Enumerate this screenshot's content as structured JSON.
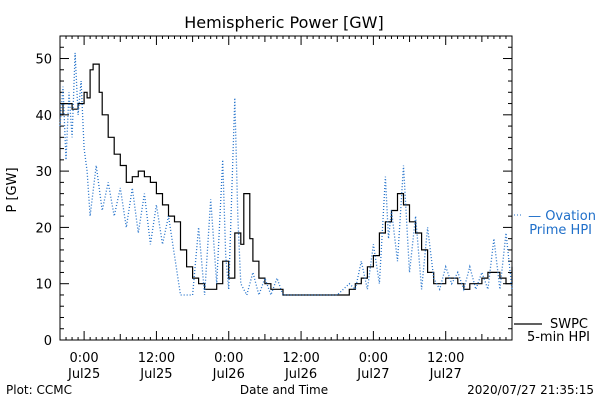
{
  "chart_data": {
    "type": "line",
    "title": "Hemispheric Power [GW]",
    "ylabel": "P [GW]",
    "xlabel": "Date and Time",
    "ylim": [
      0,
      54
    ],
    "xlim": [
      "2020-07-24T20:00",
      "2020-07-27T23:00"
    ],
    "y_ticks": [
      0,
      10,
      20,
      30,
      40,
      50
    ],
    "x_ticks": [
      {
        "t": "2020-07-25T00:00",
        "line1": "0:00",
        "line2": "Jul25"
      },
      {
        "t": "2020-07-25T12:00",
        "line1": "12:00",
        "line2": "Jul25"
      },
      {
        "t": "2020-07-26T00:00",
        "line1": "0:00",
        "line2": "Jul26"
      },
      {
        "t": "2020-07-26T12:00",
        "line1": "12:00",
        "line2": "Jul26"
      },
      {
        "t": "2020-07-27T00:00",
        "line1": "0:00",
        "line2": "Jul27"
      },
      {
        "t": "2020-07-27T12:00",
        "line1": "12:00",
        "line2": "Jul27"
      }
    ],
    "grid": false,
    "legend_position": "right",
    "series": [
      {
        "name": "SWPC 5-min HPI",
        "legend_line1": "SWPC",
        "legend_line2": "5-min HPI",
        "color": "#000000",
        "style": "solid",
        "points": [
          [
            "2020-07-24T20:00",
            40
          ],
          [
            "2020-07-24T20:30",
            42
          ],
          [
            "2020-07-24T22:00",
            41
          ],
          [
            "2020-07-24T23:00",
            42
          ],
          [
            "2020-07-25T00:00",
            44
          ],
          [
            "2020-07-25T00:30",
            43
          ],
          [
            "2020-07-25T01:00",
            48
          ],
          [
            "2020-07-25T01:30",
            49
          ],
          [
            "2020-07-25T02:30",
            44
          ],
          [
            "2020-07-25T03:00",
            40
          ],
          [
            "2020-07-25T04:00",
            36
          ],
          [
            "2020-07-25T05:00",
            33
          ],
          [
            "2020-07-25T06:00",
            31
          ],
          [
            "2020-07-25T07:00",
            28
          ],
          [
            "2020-07-25T08:00",
            29
          ],
          [
            "2020-07-25T09:00",
            30
          ],
          [
            "2020-07-25T10:00",
            29
          ],
          [
            "2020-07-25T11:00",
            28
          ],
          [
            "2020-07-25T12:00",
            26
          ],
          [
            "2020-07-25T13:00",
            24
          ],
          [
            "2020-07-25T14:00",
            22
          ],
          [
            "2020-07-25T15:00",
            21
          ],
          [
            "2020-07-25T16:00",
            16
          ],
          [
            "2020-07-25T17:00",
            13
          ],
          [
            "2020-07-25T18:00",
            11
          ],
          [
            "2020-07-25T19:00",
            10
          ],
          [
            "2020-07-25T20:00",
            9
          ],
          [
            "2020-07-25T21:00",
            9
          ],
          [
            "2020-07-25T22:00",
            10
          ],
          [
            "2020-07-25T23:00",
            14
          ],
          [
            "2020-07-26T00:00",
            11
          ],
          [
            "2020-07-26T01:00",
            19
          ],
          [
            "2020-07-26T02:00",
            17
          ],
          [
            "2020-07-26T02:30",
            26
          ],
          [
            "2020-07-26T03:30",
            18
          ],
          [
            "2020-07-26T04:00",
            14
          ],
          [
            "2020-07-26T05:00",
            11
          ],
          [
            "2020-07-26T06:00",
            10
          ],
          [
            "2020-07-26T07:00",
            9
          ],
          [
            "2020-07-26T08:00",
            9
          ],
          [
            "2020-07-26T09:00",
            8
          ],
          [
            "2020-07-26T12:00",
            8
          ],
          [
            "2020-07-26T15:00",
            8
          ],
          [
            "2020-07-26T18:00",
            8
          ],
          [
            "2020-07-26T20:00",
            9
          ],
          [
            "2020-07-26T21:00",
            10
          ],
          [
            "2020-07-26T22:00",
            11
          ],
          [
            "2020-07-26T23:00",
            13
          ],
          [
            "2020-07-27T00:00",
            15
          ],
          [
            "2020-07-27T01:00",
            19
          ],
          [
            "2020-07-27T02:00",
            21
          ],
          [
            "2020-07-27T03:00",
            23
          ],
          [
            "2020-07-27T04:00",
            26
          ],
          [
            "2020-07-27T05:00",
            24
          ],
          [
            "2020-07-27T06:00",
            21
          ],
          [
            "2020-07-27T07:00",
            19
          ],
          [
            "2020-07-27T08:00",
            16
          ],
          [
            "2020-07-27T09:00",
            12
          ],
          [
            "2020-07-27T10:00",
            10
          ],
          [
            "2020-07-27T11:00",
            10
          ],
          [
            "2020-07-27T12:00",
            11
          ],
          [
            "2020-07-27T13:00",
            11
          ],
          [
            "2020-07-27T14:00",
            10
          ],
          [
            "2020-07-27T15:00",
            9
          ],
          [
            "2020-07-27T16:00",
            10
          ],
          [
            "2020-07-27T17:00",
            10
          ],
          [
            "2020-07-27T18:00",
            11
          ],
          [
            "2020-07-27T19:00",
            12
          ],
          [
            "2020-07-27T20:00",
            12
          ],
          [
            "2020-07-27T21:00",
            11
          ],
          [
            "2020-07-27T22:00",
            10
          ],
          [
            "2020-07-27T23:00",
            13
          ]
        ]
      },
      {
        "name": "Ovation Prime HPI",
        "legend_line1": "— Ovation",
        "legend_line2": "Prime HPI",
        "color": "#1f6fc9",
        "style": "dotted",
        "points": [
          [
            "2020-07-24T20:00",
            38
          ],
          [
            "2020-07-24T20:30",
            45
          ],
          [
            "2020-07-24T21:00",
            32
          ],
          [
            "2020-07-24T21:30",
            44
          ],
          [
            "2020-07-24T22:00",
            36
          ],
          [
            "2020-07-24T22:30",
            51
          ],
          [
            "2020-07-24T23:00",
            40
          ],
          [
            "2020-07-24T23:30",
            46
          ],
          [
            "2020-07-25T00:00",
            34
          ],
          [
            "2020-07-25T00:30",
            30
          ],
          [
            "2020-07-25T01:00",
            22
          ],
          [
            "2020-07-25T02:00",
            31
          ],
          [
            "2020-07-25T03:00",
            23
          ],
          [
            "2020-07-25T04:00",
            28
          ],
          [
            "2020-07-25T05:00",
            22
          ],
          [
            "2020-07-25T06:00",
            27
          ],
          [
            "2020-07-25T07:00",
            20
          ],
          [
            "2020-07-25T08:00",
            27
          ],
          [
            "2020-07-25T09:00",
            19
          ],
          [
            "2020-07-25T10:00",
            26
          ],
          [
            "2020-07-25T11:00",
            17
          ],
          [
            "2020-07-25T12:00",
            24
          ],
          [
            "2020-07-25T13:00",
            17
          ],
          [
            "2020-07-25T14:00",
            22
          ],
          [
            "2020-07-25T15:00",
            15
          ],
          [
            "2020-07-25T16:00",
            8
          ],
          [
            "2020-07-25T18:00",
            8
          ],
          [
            "2020-07-25T19:00",
            20
          ],
          [
            "2020-07-25T20:00",
            8
          ],
          [
            "2020-07-25T21:00",
            25
          ],
          [
            "2020-07-25T22:00",
            10
          ],
          [
            "2020-07-25T23:00",
            32
          ],
          [
            "2020-07-25T23:30",
            15
          ],
          [
            "2020-07-26T00:00",
            9
          ],
          [
            "2020-07-26T01:00",
            43
          ],
          [
            "2020-07-26T01:30",
            22
          ],
          [
            "2020-07-26T02:00",
            10
          ],
          [
            "2020-07-26T03:00",
            8
          ],
          [
            "2020-07-26T04:00",
            12
          ],
          [
            "2020-07-26T05:00",
            8
          ],
          [
            "2020-07-26T06:00",
            11
          ],
          [
            "2020-07-26T07:00",
            8
          ],
          [
            "2020-07-26T08:00",
            11
          ],
          [
            "2020-07-26T09:00",
            8
          ],
          [
            "2020-07-26T12:00",
            8
          ],
          [
            "2020-07-26T15:00",
            8
          ],
          [
            "2020-07-26T18:00",
            8
          ],
          [
            "2020-07-26T20:00",
            10
          ],
          [
            "2020-07-26T21:00",
            9
          ],
          [
            "2020-07-26T22:00",
            14
          ],
          [
            "2020-07-26T23:00",
            9
          ],
          [
            "2020-07-27T00:00",
            17
          ],
          [
            "2020-07-27T01:00",
            10
          ],
          [
            "2020-07-27T02:00",
            29
          ],
          [
            "2020-07-27T02:30",
            18
          ],
          [
            "2020-07-27T03:00",
            23
          ],
          [
            "2020-07-27T04:00",
            14
          ],
          [
            "2020-07-27T05:00",
            31
          ],
          [
            "2020-07-27T06:00",
            12
          ],
          [
            "2020-07-27T07:00",
            22
          ],
          [
            "2020-07-27T08:00",
            9
          ],
          [
            "2020-07-27T09:00",
            20
          ],
          [
            "2020-07-27T10:00",
            11
          ],
          [
            "2020-07-27T11:00",
            9
          ],
          [
            "2020-07-27T12:00",
            13
          ],
          [
            "2020-07-27T13:00",
            10
          ],
          [
            "2020-07-27T14:00",
            12
          ],
          [
            "2020-07-27T15:00",
            9
          ],
          [
            "2020-07-27T16:00",
            13
          ],
          [
            "2020-07-27T17:00",
            9
          ],
          [
            "2020-07-27T18:00",
            12
          ],
          [
            "2020-07-27T19:00",
            9
          ],
          [
            "2020-07-27T20:00",
            18
          ],
          [
            "2020-07-27T21:00",
            9
          ],
          [
            "2020-07-27T22:00",
            19
          ],
          [
            "2020-07-27T23:00",
            9
          ]
        ]
      }
    ]
  },
  "footer": {
    "left": "Plot: CCMC",
    "right": "2020/07/27 21:35:15"
  }
}
